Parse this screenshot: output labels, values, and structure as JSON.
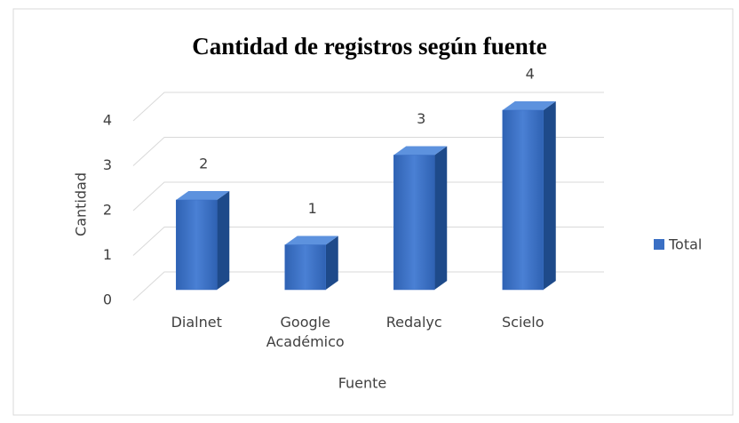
{
  "chart_data": {
    "type": "bar3d",
    "title": "Cantidad de registros según fuente",
    "x_label": "Fuente",
    "y_label": "Cantidad",
    "categories": [
      "Dialnet",
      "Google Académico",
      "Redalyc",
      "Scielo"
    ],
    "series": [
      {
        "name": "Total",
        "color": "#3a6fc4",
        "values": [
          2,
          1,
          3,
          4
        ]
      }
    ],
    "ylim": [
      0,
      4
    ],
    "yticks": [
      0,
      1,
      2,
      3,
      4
    ],
    "grid": true,
    "legend": "right"
  }
}
